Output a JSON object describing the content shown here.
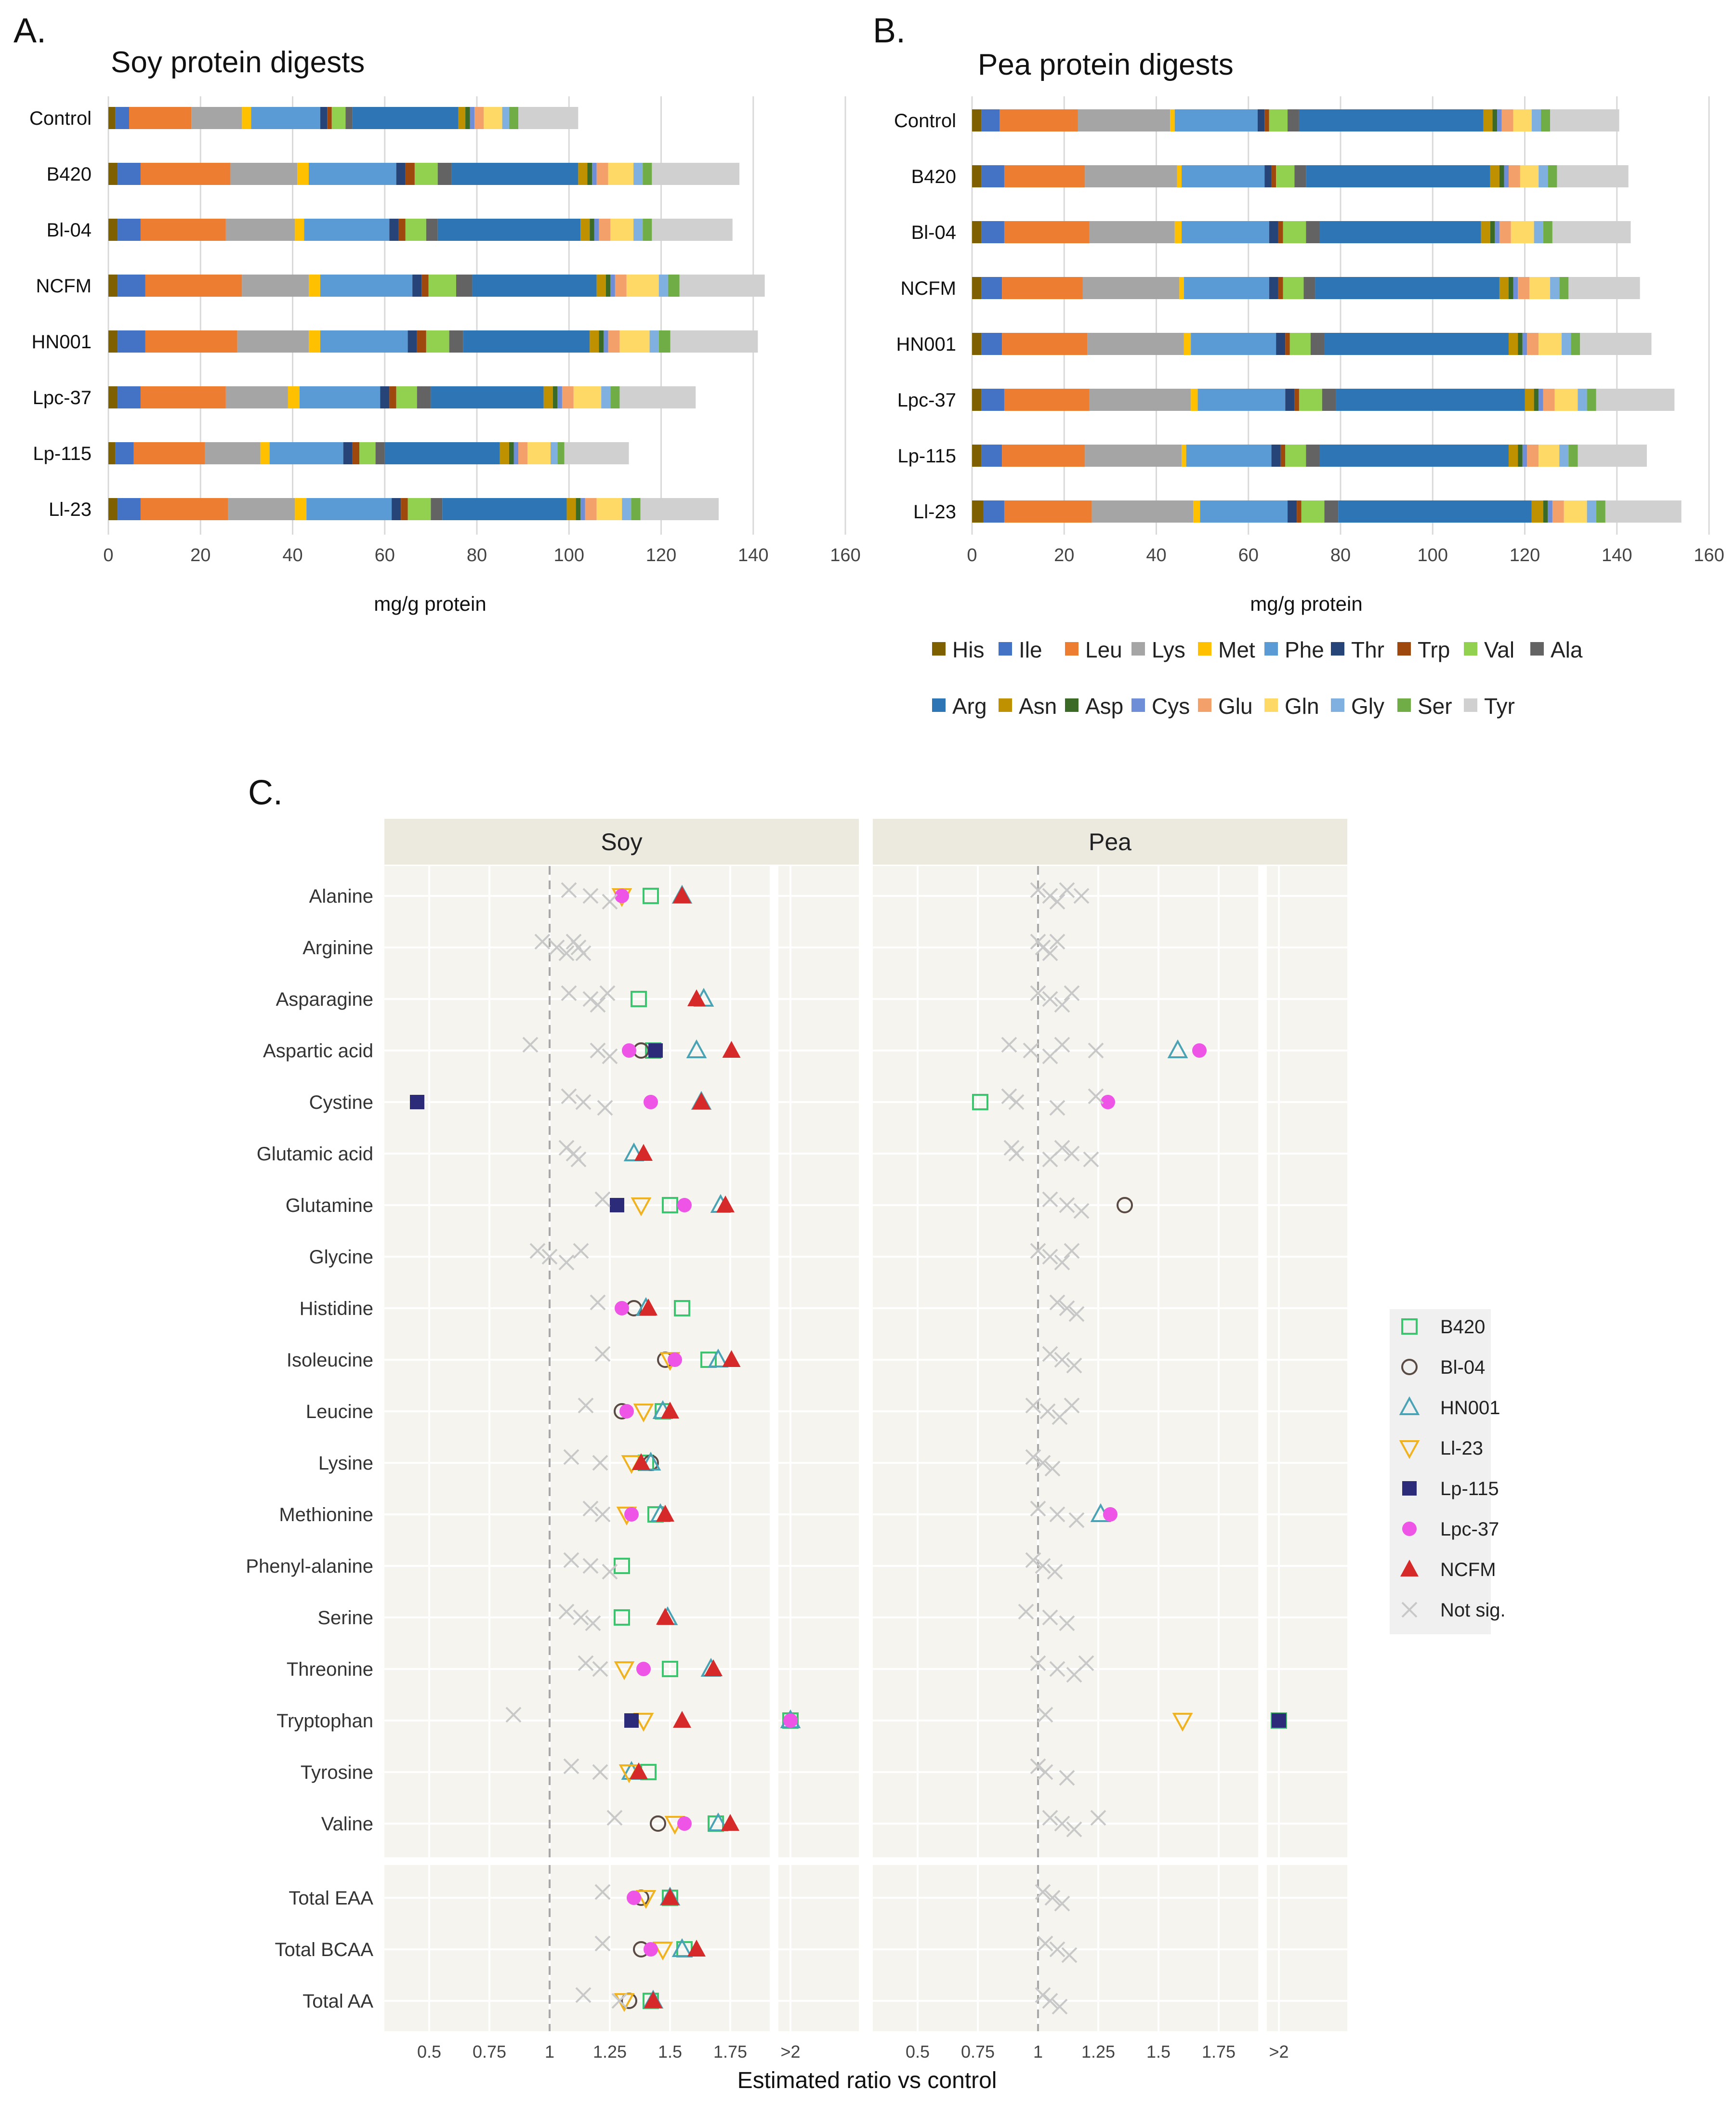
{
  "chart_data": [
    {
      "type": "bar",
      "panel": "A.",
      "title": "Soy protein digests",
      "orientation": "horizontal-stacked",
      "categories": [
        "Control",
        "B420",
        "Bl-04",
        "NCFM",
        "HN001",
        "Lpc-37",
        "Lp-115",
        "Ll-23"
      ],
      "components": [
        "His",
        "Ile",
        "Leu",
        "Lys",
        "Met",
        "Phe",
        "Thr",
        "Trp",
        "Val",
        "Ala",
        "Arg",
        "Asn",
        "Asp",
        "Cys",
        "Glu",
        "Gln",
        "Gly",
        "Ser",
        "Tyr"
      ],
      "values": [
        [
          1.5,
          3,
          13.5,
          11,
          2,
          15,
          1.5,
          1,
          3,
          1.5,
          23,
          1.5,
          1,
          1,
          2,
          4,
          1.5,
          2,
          13
        ],
        [
          2,
          5,
          19.5,
          14.5,
          2.5,
          19,
          2,
          2,
          5,
          3,
          27.5,
          2,
          1,
          1,
          2.5,
          5.5,
          2,
          2,
          19
        ],
        [
          2,
          5,
          18.5,
          15,
          2,
          18.5,
          2,
          1.5,
          4.5,
          2.5,
          31,
          2,
          1,
          1,
          2.5,
          5,
          2,
          2,
          17.5
        ],
        [
          2,
          6,
          21,
          14.5,
          2.5,
          20,
          2,
          1.5,
          6,
          3.5,
          27,
          2,
          1,
          1,
          2.5,
          7,
          2,
          2.5,
          18.5
        ],
        [
          2,
          6,
          20,
          15.5,
          2.5,
          19,
          2,
          2,
          5,
          3,
          27.5,
          2,
          1,
          1,
          2.5,
          6.5,
          2,
          2.5,
          19
        ],
        [
          2,
          5,
          18.5,
          13.5,
          2.5,
          17.5,
          2,
          1.5,
          4.5,
          3,
          24.5,
          2,
          1,
          1,
          2.5,
          6,
          2,
          2,
          16.5
        ],
        [
          1.5,
          4,
          15.5,
          12,
          2,
          16,
          2,
          1.5,
          3.5,
          2,
          25,
          2,
          1,
          1,
          2,
          5,
          1.5,
          1.5,
          14
        ],
        [
          2,
          5,
          19,
          14.5,
          2.5,
          18.5,
          2,
          1.5,
          5,
          2.5,
          27,
          2,
          1,
          1,
          2.5,
          5.5,
          2,
          2,
          17
        ]
      ],
      "xlabel": "mg/g protein",
      "xlim": [
        0,
        160
      ],
      "xticks": [
        "0",
        "20",
        "40",
        "60",
        "80",
        "100",
        "120",
        "140",
        "160"
      ],
      "grid": true
    },
    {
      "type": "bar",
      "panel": "B.",
      "title": "Pea protein digests",
      "orientation": "horizontal-stacked",
      "categories": [
        "Control",
        "B420",
        "Bl-04",
        "NCFM",
        "HN001",
        "Lpc-37",
        "Lp-115",
        "Ll-23"
      ],
      "components": [
        "His",
        "Ile",
        "Leu",
        "Lys",
        "Met",
        "Phe",
        "Thr",
        "Trp",
        "Val",
        "Ala",
        "Arg",
        "Asn",
        "Asp",
        "Cys",
        "Glu",
        "Gln",
        "Gly",
        "Ser",
        "Tyr"
      ],
      "values": [
        [
          2,
          4,
          17,
          20,
          1,
          18,
          1.5,
          1,
          4,
          2.5,
          40,
          2,
          1,
          1,
          2.5,
          4,
          2,
          2,
          15
        ],
        [
          2,
          5,
          17.5,
          20,
          1,
          18,
          1.5,
          1,
          4,
          2.5,
          40,
          2,
          1,
          1,
          2.5,
          4,
          2,
          2,
          15.5
        ],
        [
          2,
          5,
          18.5,
          18.5,
          1.5,
          19,
          2,
          1,
          5,
          3,
          35,
          2,
          1,
          1,
          2.5,
          5,
          2,
          2,
          17
        ],
        [
          2,
          4.5,
          17.5,
          21,
          1,
          18.5,
          2,
          1,
          4.5,
          2.5,
          40,
          2,
          1,
          1,
          2.5,
          4.5,
          2,
          2,
          15.5
        ],
        [
          2,
          4.5,
          18.5,
          21,
          1.5,
          18.5,
          2,
          1,
          4.5,
          3,
          40,
          2,
          1,
          1,
          2.5,
          5,
          2,
          2,
          15.5
        ],
        [
          2,
          5,
          18.5,
          22,
          1.5,
          19,
          2,
          1,
          5,
          3,
          41,
          2,
          1,
          1,
          2.5,
          5,
          2,
          2,
          17
        ],
        [
          2,
          4.5,
          18,
          21,
          1,
          18.5,
          2,
          1,
          4.5,
          3,
          41,
          2,
          1,
          1,
          2.5,
          4.5,
          2,
          2,
          15
        ],
        [
          2.5,
          4.5,
          19,
          22,
          1.5,
          19,
          2,
          1,
          5,
          3,
          42,
          2.5,
          1,
          1,
          2.5,
          5,
          2,
          2,
          16.5
        ]
      ],
      "xlabel": "mg/g protein",
      "xlim": [
        0,
        160
      ],
      "xticks": [
        "0",
        "20",
        "40",
        "60",
        "80",
        "100",
        "120",
        "140",
        "160"
      ],
      "grid": true
    },
    {
      "type": "scatter",
      "panel": "C.",
      "facets": [
        "Soy",
        "Pea"
      ],
      "xlabel": "Estimated ratio vs control",
      "xticks": [
        "0.5",
        "0.75",
        "1",
        "1.25",
        "1.5",
        "1.75",
        ">2"
      ],
      "xlim": [
        0.3,
        2.3
      ],
      "reference_line": 1,
      "rows": [
        "Alanine",
        "Arginine",
        "Asparagine",
        "Aspartic acid",
        "Cystine",
        "Glutamic acid",
        "Glutamine",
        "Glycine",
        "Histidine",
        "Isoleucine",
        "Leucine",
        "Lysine",
        "Methionine",
        "Phenyl-alanine",
        "Serine",
        "Threonine",
        "Tryptophan",
        "Tyrosine",
        "Valine"
      ],
      "total_rows": [
        "Total EAA",
        "Total BCAA",
        "Total AA"
      ],
      "legend": [
        "B420",
        "Bl-04",
        "HN001",
        "Ll-23",
        "Lp-115",
        "Lpc-37",
        "NCFM",
        "Not sig."
      ],
      "Soy": {
        "Alanine": {
          "B420": 1.42,
          "HN001": 1.55,
          "Ll-23": 1.3,
          "Lpc-37": 1.3,
          "NCFM": 1.55,
          "Not sig.": [
            1.08,
            1.17,
            1.25
          ]
        },
        "Arginine": {
          "Not sig.": [
            0.97,
            1.03,
            1.07,
            1.1,
            1.12,
            1.14
          ]
        },
        "Asparagine": {
          "B420": 1.37,
          "HN001": 1.64,
          "NCFM": 1.61,
          "Not sig.": [
            1.08,
            1.17,
            1.2,
            1.24
          ]
        },
        "Aspartic acid": {
          "B420": 1.43,
          "Bl-04": 1.38,
          "HN001": 1.61,
          "Lp-115": 1.44,
          "Lpc-37": 1.33,
          "NCFM": 1.76,
          "Not sig.": [
            0.92,
            1.2,
            1.25
          ]
        },
        "Cystine": {
          "Lp-115": 0.45,
          "HN001": 1.63,
          "Lpc-37": 1.42,
          "NCFM": 1.63,
          "Not sig.": [
            1.08,
            1.14,
            1.23
          ]
        },
        "Glutamic acid": {
          "HN001": 1.35,
          "NCFM": 1.39,
          "Not sig.": [
            1.07,
            1.1,
            1.12
          ]
        },
        "Glutamine": {
          "B420": 1.5,
          "HN001": 1.71,
          "Ll-23": 1.38,
          "Lp-115": 1.28,
          "Lpc-37": 1.56,
          "NCFM": 1.73,
          "Not sig.": [
            1.22
          ]
        },
        "Glycine": {
          "Not sig.": [
            0.95,
            1,
            1.07,
            1.13
          ]
        },
        "Histidine": {
          "B420": 1.55,
          "Bl-04": 1.35,
          "HN001": 1.4,
          "Lpc-37": 1.3,
          "NCFM": 1.41,
          "Not sig.": [
            1.2
          ]
        },
        "Isoleucine": {
          "B420": 1.66,
          "Bl-04": 1.48,
          "HN001": 1.7,
          "Ll-23": 1.5,
          "Lpc-37": 1.52,
          "NCFM": 1.76,
          "Not sig.": [
            1.22
          ]
        },
        "Leucine": {
          "B420": 1.47,
          "Bl-04": 1.3,
          "HN001": 1.47,
          "Ll-23": 1.39,
          "Lpc-37": 1.32,
          "NCFM": 1.5,
          "Not sig.": [
            1.15
          ]
        },
        "Lysine": {
          "B420": 1.4,
          "Bl-04": 1.42,
          "HN001": 1.42,
          "Ll-23": 1.34,
          "NCFM": 1.38,
          "Not sig.": [
            1.09,
            1.21
          ]
        },
        "Methionine": {
          "B420": 1.44,
          "HN001": 1.46,
          "Ll-23": 1.32,
          "Lpc-37": 1.34,
          "NCFM": 1.48,
          "Not sig.": [
            1.17,
            1.22
          ]
        },
        "Phenyl-alanine": {
          "B420": 1.3,
          "Not sig.": [
            1.09,
            1.17,
            1.25
          ]
        },
        "Serine": {
          "B420": 1.3,
          "HN001": 1.49,
          "NCFM": 1.48,
          "Not sig.": [
            1.07,
            1.13,
            1.18
          ]
        },
        "Threonine": {
          "B420": 1.5,
          "HN001": 1.67,
          "Ll-23": 1.31,
          "Lpc-37": 1.39,
          "NCFM": 1.68,
          "Not sig.": [
            1.15,
            1.21
          ]
        },
        "Tryptophan": {
          "B420": 2.08,
          "HN001": 2.09,
          "Ll-23": 1.39,
          "Lp-115": 1.34,
          "Lpc-37": 2.05,
          "NCFM": 1.55,
          "Not sig.": [
            0.85
          ]
        },
        "Tyrosine": {
          "B420": 1.41,
          "HN001": 1.34,
          "Ll-23": 1.33,
          "NCFM": 1.37,
          "Not sig.": [
            1.09,
            1.21
          ]
        },
        "Valine": {
          "B420": 1.69,
          "Bl-04": 1.45,
          "HN001": 1.7,
          "Ll-23": 1.52,
          "Lpc-37": 1.56,
          "NCFM": 1.75,
          "Not sig.": [
            1.27
          ]
        },
        "Total EAA": {
          "B420": 1.5,
          "Bl-04": 1.38,
          "HN001": 1.5,
          "Ll-23": 1.4,
          "Lpc-37": 1.35,
          "NCFM": 1.5,
          "Not sig.": [
            1.22
          ]
        },
        "Total BCAA": {
          "B420": 1.56,
          "Bl-04": 1.38,
          "HN001": 1.55,
          "Ll-23": 1.47,
          "Lpc-37": 1.42,
          "NCFM": 1.61,
          "Not sig.": [
            1.22
          ]
        },
        "Total AA": {
          "B420": 1.42,
          "Bl-04": 1.33,
          "HN001": 1.43,
          "Ll-23": 1.31,
          "NCFM": 1.43,
          "Not sig.": [
            1.14,
            1.29
          ]
        }
      },
      "Pea": {
        "Alanine": {
          "Not sig.": [
            1,
            1.05,
            1.08,
            1.12,
            1.18
          ]
        },
        "Arginine": {
          "Not sig.": [
            1,
            1.02,
            1.05,
            1.08
          ]
        },
        "Asparagine": {
          "Not sig.": [
            1,
            1.05,
            1.1,
            1.14
          ]
        },
        "Aspartic acid": {
          "HN001": 1.58,
          "Lpc-37": 1.67,
          "Not sig.": [
            0.88,
            0.97,
            1.05,
            1.1,
            1.24
          ]
        },
        "Cystine": {
          "B420": 0.76,
          "Lpc-37": 1.29,
          "Not sig.": [
            0.88,
            0.91,
            1.08,
            1.24
          ]
        },
        "Glutamic acid": {
          "Not sig.": [
            0.89,
            0.91,
            1.05,
            1.1,
            1.14,
            1.22
          ]
        },
        "Glutamine": {
          "Bl-04": 1.36,
          "Not sig.": [
            1.05,
            1.12,
            1.18
          ]
        },
        "Glycine": {
          "Not sig.": [
            1,
            1.05,
            1.1,
            1.14
          ]
        },
        "Histidine": {
          "Not sig.": [
            1.08,
            1.12,
            1.16
          ]
        },
        "Isoleucine": {
          "Not sig.": [
            1.05,
            1.1,
            1.15
          ]
        },
        "Leucine": {
          "Not sig.": [
            0.98,
            1.04,
            1.09,
            1.14
          ]
        },
        "Lysine": {
          "Not sig.": [
            0.98,
            1.02,
            1.06
          ]
        },
        "Methionine": {
          "HN001": 1.26,
          "Lpc-37": 1.3,
          "Not sig.": [
            1,
            1.08,
            1.16
          ]
        },
        "Phenyl-alanine": {
          "Not sig.": [
            0.98,
            1.02,
            1.07
          ]
        },
        "Serine": {
          "Not sig.": [
            0.95,
            1.05,
            1.12
          ]
        },
        "Threonine": {
          "Not sig.": [
            1,
            1.08,
            1.15,
            1.2
          ]
        },
        "Tryptophan": {
          "B420": 2.08,
          "Ll-23": 1.6,
          "Lp-115": 2.08,
          "Not sig.": [
            1.03
          ]
        },
        "Tyrosine": {
          "Not sig.": [
            1,
            1.03,
            1.12
          ]
        },
        "Valine": {
          "Not sig.": [
            1.05,
            1.1,
            1.15,
            1.25
          ]
        },
        "Total EAA": {
          "Not sig.": [
            1.02,
            1.06,
            1.1
          ]
        },
        "Total BCAA": {
          "Not sig.": [
            1.03,
            1.08,
            1.13
          ]
        },
        "Total AA": {
          "Not sig.": [
            1.02,
            1.05,
            1.09
          ]
        }
      }
    }
  ],
  "legend_ab": {
    "components": [
      "His",
      "Ile",
      "Leu",
      "Lys",
      "Met",
      "Phe",
      "Thr",
      "Trp",
      "Val",
      "Ala",
      "Arg",
      "Asn",
      "Asp",
      "Cys",
      "Glu",
      "Gln",
      "Gly",
      "Ser",
      "Tyr"
    ],
    "colors": [
      "#7f6000",
      "#4472c4",
      "#ed7d31",
      "#a5a5a5",
      "#ffc000",
      "#5b9bd5",
      "#264478",
      "#9e480e",
      "#92d050",
      "#636363",
      "#2e75b6",
      "#bf9000",
      "#3a6a26",
      "#6f8ed8",
      "#f4a06a",
      "#ffd966",
      "#7fb0e0",
      "#70ad47",
      "#d0d0d0"
    ]
  },
  "marker_colors": {
    "B420": "#3cc46f",
    "Bl-04": "#5a4a44",
    "HN001": "#4aa3b5",
    "Ll-23": "#f0b21e",
    "Lp-115": "#2b2b7a",
    "Lpc-37": "#ee55e6",
    "NCFM": "#d62a2a",
    "Not sig.": "#c8c8c8"
  }
}
